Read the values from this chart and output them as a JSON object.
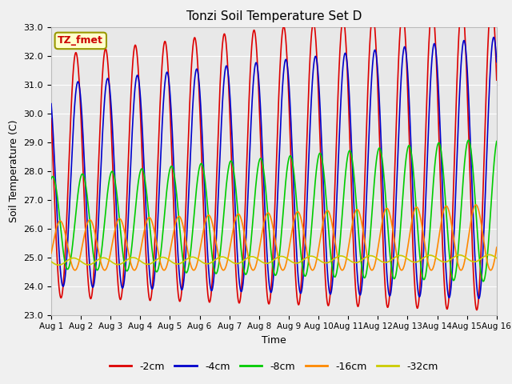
{
  "title": "Tonzi Soil Temperature Set D",
  "xlabel": "Time",
  "ylabel": "Soil Temperature (C)",
  "annotation": "TZ_fmet",
  "ylim": [
    23.0,
    33.0
  ],
  "xlim_start": 0,
  "xlim_end": 15,
  "yticks": [
    23.0,
    24.0,
    25.0,
    26.0,
    27.0,
    28.0,
    29.0,
    30.0,
    31.0,
    32.0,
    33.0
  ],
  "xtick_positions": [
    0,
    1,
    2,
    3,
    4,
    5,
    6,
    7,
    8,
    9,
    10,
    11,
    12,
    13,
    14,
    15
  ],
  "xtick_labels": [
    "Aug 1",
    "Aug 2",
    "Aug 3",
    "Aug 4",
    "Aug 5",
    "Aug 6",
    "Aug 7",
    "Aug 8",
    "Aug 9",
    "Aug 10",
    "Aug 11",
    "Aug 12",
    "Aug 13",
    "Aug 14",
    "Aug 15",
    "Aug 16"
  ],
  "series_order": [
    "-2cm",
    "-4cm",
    "-8cm",
    "-16cm",
    "-32cm"
  ],
  "series": {
    "-2cm": {
      "color": "#dd0000",
      "lw": 1.2,
      "mean": 27.8,
      "amp": 4.2,
      "phase_days": 0.58,
      "trend": 0.05,
      "amp_trend": 0.08
    },
    "-4cm": {
      "color": "#0000cc",
      "lw": 1.2,
      "mean": 27.5,
      "amp": 3.5,
      "phase_days": 0.65,
      "trend": 0.04,
      "amp_trend": 0.07
    },
    "-8cm": {
      "color": "#00cc00",
      "lw": 1.2,
      "mean": 26.2,
      "amp": 1.6,
      "phase_days": 0.8,
      "trend": 0.03,
      "amp_trend": 0.06
    },
    "-16cm": {
      "color": "#ff8800",
      "lw": 1.2,
      "mean": 25.4,
      "amp": 0.85,
      "phase_days": 1.05,
      "trend": 0.02,
      "amp_trend": 0.02
    },
    "-32cm": {
      "color": "#cccc00",
      "lw": 1.2,
      "mean": 24.85,
      "amp": 0.12,
      "phase_days": 1.5,
      "trend": 0.008,
      "amp_trend": 0.0
    }
  },
  "fig_bg": "#f0f0f0",
  "plot_bg": "#e8e8e8",
  "grid_color": "#ffffff",
  "annotation_bg": "#ffffcc",
  "annotation_border": "#999900",
  "annotation_text_color": "#cc0000",
  "legend_labels": [
    "-2cm",
    "-4cm",
    "-8cm",
    "-16cm",
    "-32cm"
  ],
  "legend_colors": [
    "#dd0000",
    "#0000cc",
    "#00cc00",
    "#ff8800",
    "#cccc00"
  ]
}
